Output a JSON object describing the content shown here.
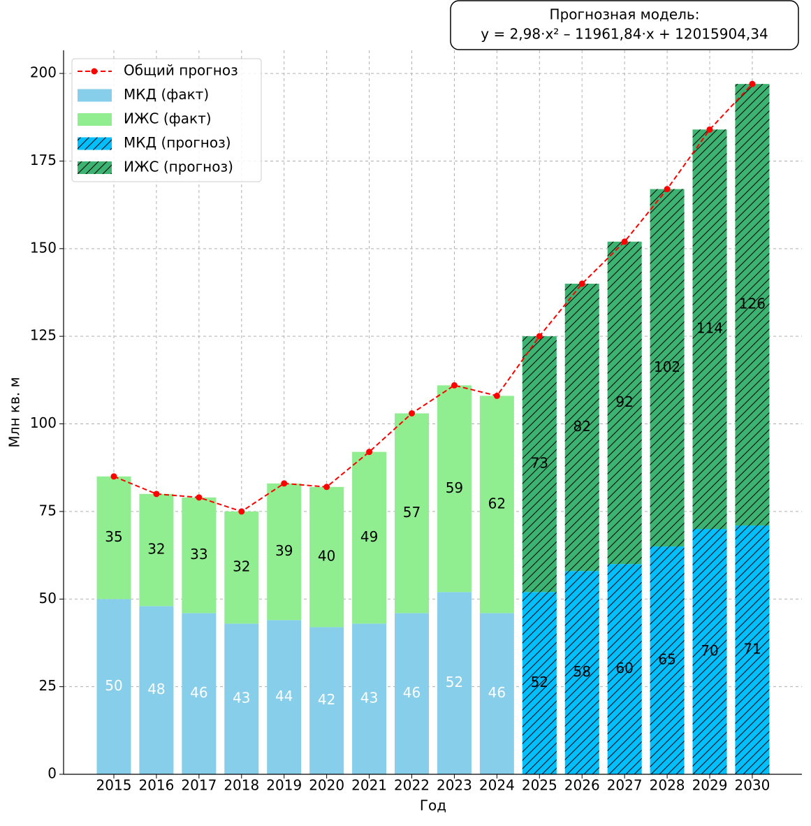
{
  "chart_data": {
    "type": "bar",
    "annotation": [
      "Прогнозная модель:",
      "y = 2,98·x² – 11961,84·x + 12015904,34"
    ],
    "xlabel": "Год",
    "ylabel": "Млн кв. м",
    "categories": [
      "2015",
      "2016",
      "2017",
      "2018",
      "2019",
      "2020",
      "2021",
      "2022",
      "2023",
      "2024",
      "2025",
      "2026",
      "2027",
      "2028",
      "2029",
      "2030"
    ],
    "series": [
      {
        "name": "МКД (факт)",
        "color": "#87ceeb",
        "hatch": false,
        "label_color": "#ffffff",
        "values": [
          50,
          48,
          46,
          43,
          44,
          42,
          43,
          46,
          52,
          46,
          null,
          null,
          null,
          null,
          null,
          null
        ]
      },
      {
        "name": "ИЖС (факт)",
        "color": "#90ee90",
        "hatch": false,
        "label_color": "#000000",
        "values": [
          35,
          32,
          33,
          32,
          39,
          40,
          49,
          57,
          59,
          62,
          null,
          null,
          null,
          null,
          null,
          null
        ]
      },
      {
        "name": "МКД (прогноз)",
        "color": "#00bfff",
        "hatch": true,
        "label_color": "#000000",
        "values": [
          null,
          null,
          null,
          null,
          null,
          null,
          null,
          null,
          null,
          null,
          52,
          58,
          60,
          65,
          70,
          71
        ]
      },
      {
        "name": "ИЖС (прогноз)",
        "color": "#3cb371",
        "hatch": true,
        "label_color": "#000000",
        "values": [
          null,
          null,
          null,
          null,
          null,
          null,
          null,
          null,
          null,
          null,
          73,
          82,
          92,
          102,
          114,
          126
        ]
      }
    ],
    "line": {
      "name": "Общий прогноз",
      "color": "#ff0000",
      "values": [
        85,
        80,
        79,
        75,
        83,
        82,
        92,
        103,
        111,
        108,
        125,
        140,
        152,
        167,
        184,
        197
      ]
    },
    "ylim": [
      0,
      206.6
    ],
    "yticks": [
      0,
      25,
      50,
      75,
      100,
      125,
      150,
      175,
      200
    ],
    "grid": true,
    "legend": "upper-left"
  }
}
